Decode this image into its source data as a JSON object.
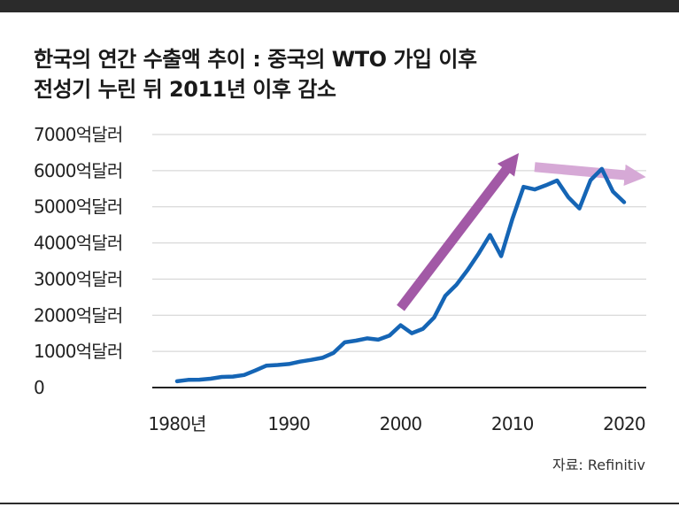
{
  "title_line1": "한국의 연간 수출액 추이 : 중국의 WTO 가입 이후",
  "title_line2": "전성기 누린 뒤 2011년 이후 감소",
  "source": "자료: Refinitiv",
  "colors": {
    "line": "#1565b5",
    "arrow_up": "#a259a6",
    "arrow_flat": "#d6a9d6",
    "axis": "#222222",
    "grid": "#cfcfcf",
    "top_bar": "#2b2b2b"
  },
  "chart_data": {
    "type": "line",
    "title": "한국의 연간 수출액 추이 : 중국의 WTO 가입 이후 전성기 누린 뒤 2011년 이후 감소",
    "xlabel": "",
    "ylabel": "",
    "xlim": [
      1980,
      2020
    ],
    "ylim": [
      0,
      7000
    ],
    "grid": "horizontal",
    "y_ticks": [
      {
        "value": 0,
        "label": "0"
      },
      {
        "value": 1000,
        "label": "1000억달러"
      },
      {
        "value": 2000,
        "label": "2000억달러"
      },
      {
        "value": 3000,
        "label": "3000억달러"
      },
      {
        "value": 4000,
        "label": "4000억달러"
      },
      {
        "value": 5000,
        "label": "5000억달러"
      },
      {
        "value": 6000,
        "label": "6000억달러"
      },
      {
        "value": 7000,
        "label": "7000억달러"
      }
    ],
    "x_ticks": [
      {
        "value": 1980,
        "label": "1980년"
      },
      {
        "value": 1990,
        "label": "1990"
      },
      {
        "value": 2000,
        "label": "2000"
      },
      {
        "value": 2010,
        "label": "2010"
      },
      {
        "value": 2020,
        "label": "2020"
      }
    ],
    "series": [
      {
        "name": "",
        "x": [
          1980,
          1981,
          1982,
          1983,
          1984,
          1985,
          1986,
          1987,
          1988,
          1989,
          1990,
          1991,
          1992,
          1993,
          1994,
          1995,
          1996,
          1997,
          1998,
          1999,
          2000,
          2001,
          2002,
          2003,
          2004,
          2005,
          2006,
          2007,
          2008,
          2009,
          2010,
          2011,
          2012,
          2013,
          2014,
          2015,
          2016,
          2017,
          2018,
          2019,
          2020
        ],
        "y": [
          175,
          212,
          218,
          244,
          293,
          303,
          347,
          473,
          607,
          624,
          650,
          718,
          766,
          822,
          960,
          1251,
          1297,
          1362,
          1323,
          1437,
          1723,
          1504,
          1625,
          1938,
          2538,
          2844,
          3255,
          3715,
          4220,
          3635,
          4664,
          5552,
          5479,
          5596,
          5727,
          5268,
          4954,
          5737,
          6049,
          5422,
          5128
        ]
      }
    ],
    "annotations": [
      {
        "type": "arrow",
        "from": [
          2000,
          2200
        ],
        "to": [
          2010,
          6250
        ],
        "color": "arrow_up"
      },
      {
        "type": "arrow",
        "from": [
          2012,
          6100
        ],
        "to": [
          2021,
          5850
        ],
        "color": "arrow_flat"
      }
    ]
  }
}
